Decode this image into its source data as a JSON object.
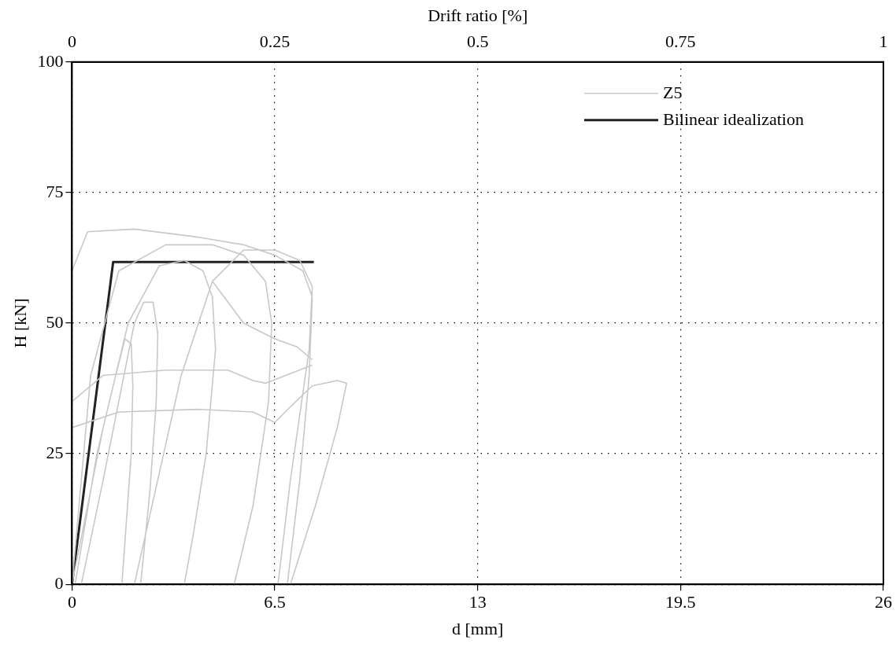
{
  "chart_data": {
    "type": "line",
    "xlabel": "d [mm]",
    "ylabel": "H [kN]",
    "x2label": "Drift ratio [%]",
    "xlim": [
      0,
      26
    ],
    "xticks": [
      0,
      6.5,
      13,
      19.5,
      26
    ],
    "ylim": [
      0,
      100
    ],
    "yticks": [
      0,
      25,
      50,
      75,
      100
    ],
    "x2lim": [
      0,
      1
    ],
    "x2ticks": [
      0,
      0.25,
      0.5,
      0.75,
      1
    ],
    "grid": true,
    "legend": "top right",
    "marker": "none",
    "series": [
      {
        "name": "Z5",
        "color": "#c8c8c8",
        "line_style": "solid",
        "x": [
          0,
          0.5,
          1.0,
          1.4,
          1.7,
          1.9,
          1.95,
          1.9,
          1.6,
          null,
          0.3,
          1.0,
          1.5,
          2.0,
          2.3,
          2.6,
          2.75,
          2.7,
          2.5,
          2.2,
          null,
          0.1,
          0.8,
          1.8,
          2.8,
          3.6,
          4.2,
          4.5,
          4.6,
          4.3,
          3.9,
          3.6,
          null,
          0,
          0.6,
          1.5,
          3.0,
          4.5,
          5.5,
          6.2,
          6.4,
          6.3,
          5.8,
          5.2,
          null,
          2.0,
          3.5,
          4.5,
          5.5,
          6.5,
          7.3,
          7.7,
          7.6,
          7.0,
          6.6,
          null,
          0,
          0.5,
          2.0,
          4.0,
          5.5,
          6.5,
          7.4,
          7.7,
          7.6,
          7.3,
          6.9,
          null,
          0,
          1.5,
          4.0,
          5.8,
          6.5,
          7.0,
          7.7,
          8.5,
          8.8,
          8.5,
          7.8,
          7.0,
          null,
          0,
          1.0,
          3.0,
          5.0,
          5.8,
          6.2,
          7.7,
          null,
          4.5,
          5.5,
          6.5,
          7.2,
          7.7
        ],
        "values": [
          0,
          15,
          30,
          40,
          47,
          46,
          38,
          25,
          0,
          null,
          0,
          20,
          35,
          50,
          54,
          54,
          48,
          35,
          18,
          0,
          null,
          0,
          25,
          50,
          61,
          62,
          60,
          55,
          45,
          25,
          10,
          0,
          null,
          0,
          40,
          60,
          65,
          65,
          63,
          58,
          50,
          35,
          15,
          0,
          null,
          0,
          40,
          58,
          64,
          64,
          62,
          57,
          45,
          20,
          0,
          null,
          60,
          67.5,
          68,
          66.5,
          65,
          63,
          60,
          55,
          40,
          20,
          0,
          null,
          30,
          33,
          33.5,
          33,
          31,
          34,
          38,
          39,
          38.5,
          30,
          15,
          0,
          null,
          35,
          40,
          41,
          41,
          39,
          38.5,
          42,
          null,
          58,
          50,
          47,
          45.5,
          43
        ]
      },
      {
        "name": "Bilinear idealization",
        "color": "#222222",
        "line_style": "solid",
        "x": [
          0,
          1.32,
          7.75
        ],
        "values": [
          0,
          61.7,
          61.7
        ]
      }
    ]
  }
}
